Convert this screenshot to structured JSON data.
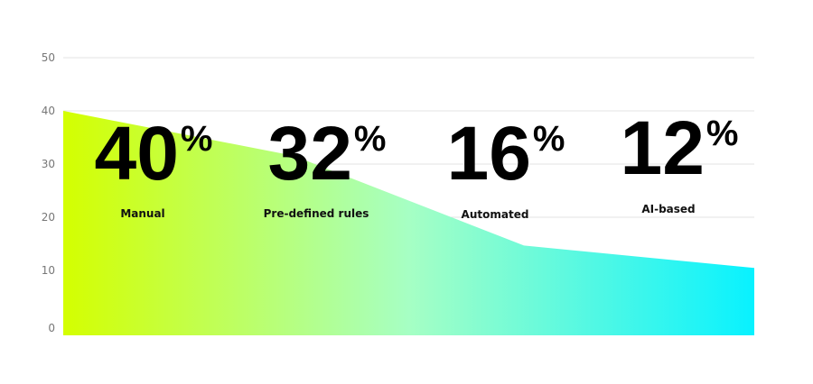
{
  "chart_data": {
    "type": "area",
    "categories": [
      "Manual",
      "Pre-defined rules",
      "Automated",
      "AI-based"
    ],
    "values": [
      40,
      32,
      16,
      12
    ],
    "value_labels": [
      "40",
      "32",
      "16",
      "12"
    ],
    "unit_symbol": "%",
    "yticks": [
      "0",
      "10",
      "20",
      "30",
      "40",
      "50"
    ],
    "ylim": [
      0,
      50
    ],
    "grid": true,
    "gradient": {
      "start": "#d4ff00",
      "end": "#08f2ff"
    }
  }
}
